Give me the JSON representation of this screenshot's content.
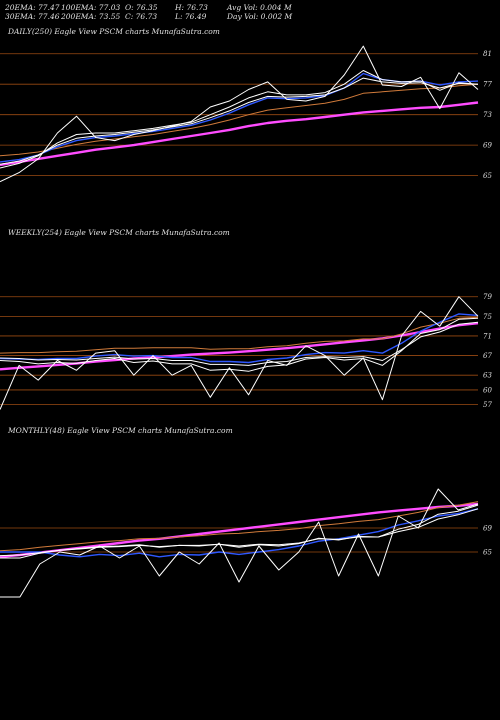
{
  "stats": {
    "ema20": "20EMA: 77.47",
    "ema100": "100EMA: 77.03",
    "open": "O: 76.35",
    "high": "H: 76.73",
    "avg_vol": "Avg Vol: 0.004  M",
    "ema30": "30EMA: 77.46",
    "ema200": "200EMA: 73.55",
    "close": "C: 76.73",
    "low": "L: 76.49",
    "day_vol": "Day Vol: 0.002  M"
  },
  "chart_data": [
    {
      "type": "line",
      "title": "DAILY(250) Eagle  View  PSCM charts MunafaSutra.com",
      "y_ticks": [
        "81",
        "77",
        "73",
        "69",
        "65"
      ],
      "y_tick_values": [
        81,
        77,
        73,
        69,
        65
      ],
      "ylim": [
        61.8,
        82.8
      ],
      "x": [
        0,
        10,
        20,
        30,
        40,
        50,
        60,
        70,
        80,
        90,
        100,
        110,
        120,
        130,
        140,
        150,
        160,
        170,
        180,
        190,
        200,
        210,
        220,
        230,
        240,
        250
      ],
      "series": [
        {
          "color": "#ffffff",
          "values": [
            64.2,
            65.4,
            67.2,
            70.6,
            72.8,
            70.0,
            69.6,
            70.4,
            70.9,
            71.5,
            72.1,
            74.0,
            74.8,
            76.3,
            77.3,
            75.0,
            74.8,
            75.4,
            78.2,
            82.0,
            76.9,
            76.7,
            77.9,
            73.8,
            78.5,
            76.3
          ]
        },
        {
          "color": "#ffffff",
          "values": [
            66.0,
            66.6,
            67.6,
            69.3,
            70.4,
            70.6,
            70.6,
            70.9,
            71.2,
            71.6,
            72.0,
            73.0,
            74.0,
            75.2,
            76.0,
            75.6,
            75.6,
            75.9,
            77.0,
            78.8,
            77.6,
            77.3,
            77.4,
            76.2,
            77.2,
            77.0
          ]
        },
        {
          "color": "#ffffff",
          "values": [
            66.5,
            66.9,
            67.7,
            69.0,
            69.9,
            70.2,
            70.4,
            70.7,
            71.0,
            71.4,
            71.8,
            72.6,
            73.5,
            74.6,
            75.4,
            75.3,
            75.4,
            75.6,
            76.5,
            77.8,
            77.3,
            77.1,
            77.2,
            76.5,
            77.1,
            77.0
          ]
        },
        {
          "color": "#2f58ff",
          "values": [
            66.8,
            67.1,
            67.7,
            68.8,
            69.6,
            70.0,
            70.2,
            70.5,
            70.8,
            71.2,
            71.6,
            72.3,
            73.2,
            74.3,
            75.2,
            75.1,
            75.2,
            75.5,
            76.5,
            78.4,
            77.6,
            77.3,
            77.4,
            76.9,
            77.3,
            77.4
          ]
        },
        {
          "color": "#d07a3a",
          "values": [
            67.6,
            67.8,
            68.1,
            68.6,
            69.1,
            69.5,
            69.8,
            70.1,
            70.4,
            70.8,
            71.2,
            71.7,
            72.3,
            73.0,
            73.6,
            73.9,
            74.2,
            74.5,
            75.0,
            75.8,
            76.0,
            76.2,
            76.4,
            76.5,
            76.8,
            77.0
          ]
        },
        {
          "color": "#ff4cff",
          "values": [
            66.4,
            66.8,
            67.2,
            67.6,
            68.0,
            68.4,
            68.7,
            69.0,
            69.4,
            69.8,
            70.2,
            70.6,
            71.0,
            71.5,
            71.9,
            72.2,
            72.4,
            72.7,
            73.0,
            73.3,
            73.5,
            73.7,
            73.9,
            74.0,
            74.3,
            74.6
          ]
        }
      ]
    },
    {
      "type": "line",
      "title": "WEEKLY(254) Eagle  View  PSCM charts MunafaSutra.com",
      "y_ticks": [
        "79",
        "75",
        "71",
        "67",
        "63",
        "60",
        "57"
      ],
      "y_tick_values": [
        79,
        75,
        71,
        67,
        63,
        60,
        57
      ],
      "ylim": [
        55.5,
        82.0
      ],
      "x": [
        0,
        10,
        20,
        30,
        40,
        50,
        60,
        70,
        80,
        90,
        100,
        110,
        120,
        130,
        140,
        150,
        160,
        170,
        180,
        190,
        200,
        210,
        220,
        230,
        240,
        250
      ],
      "series": [
        {
          "color": "#ffffff",
          "values": [
            56.0,
            65.0,
            62.0,
            66.0,
            64.0,
            67.5,
            68.0,
            63.0,
            67.0,
            63.0,
            65.0,
            58.5,
            64.5,
            59.0,
            66.0,
            65.0,
            69.0,
            67.0,
            63.0,
            66.5,
            58.0,
            71.0,
            76.0,
            73.0,
            79.0,
            75.0
          ]
        },
        {
          "color": "#ffffff",
          "values": [
            66.0,
            65.8,
            65.3,
            65.6,
            65.4,
            66.0,
            66.4,
            65.6,
            65.9,
            65.3,
            65.3,
            64.0,
            64.2,
            63.8,
            64.8,
            65.1,
            66.3,
            66.6,
            66.1,
            66.4,
            65.0,
            68.0,
            71.5,
            72.3,
            74.4,
            74.6
          ]
        },
        {
          "color": "#ffffff",
          "values": [
            66.5,
            66.4,
            66.1,
            66.2,
            66.1,
            66.4,
            66.7,
            66.3,
            66.4,
            66.0,
            66.0,
            65.2,
            65.2,
            65.0,
            65.6,
            65.8,
            66.6,
            66.8,
            66.6,
            66.8,
            66.0,
            68.2,
            70.8,
            71.8,
            73.4,
            73.8
          ]
        },
        {
          "color": "#2f58ff",
          "values": [
            66.4,
            66.3,
            66.2,
            66.4,
            66.4,
            66.9,
            67.2,
            66.9,
            67.0,
            66.6,
            66.6,
            65.8,
            65.8,
            65.6,
            66.2,
            66.5,
            67.2,
            67.6,
            67.5,
            68.0,
            67.5,
            69.5,
            72.0,
            73.8,
            75.5,
            75.2
          ]
        },
        {
          "color": "#d07a3a",
          "values": [
            67.5,
            67.6,
            67.6,
            67.8,
            67.9,
            68.2,
            68.5,
            68.5,
            68.6,
            68.6,
            68.6,
            68.3,
            68.4,
            68.4,
            68.8,
            69.0,
            69.5,
            69.9,
            70.0,
            70.4,
            70.4,
            71.4,
            72.8,
            73.6,
            74.6,
            74.8
          ]
        },
        {
          "color": "#ff4cff",
          "values": [
            64.2,
            64.5,
            64.8,
            65.1,
            65.4,
            65.8,
            66.1,
            66.4,
            66.6,
            66.9,
            67.2,
            67.4,
            67.6,
            67.9,
            68.2,
            68.5,
            68.9,
            69.3,
            69.7,
            70.1,
            70.5,
            71.1,
            71.8,
            72.5,
            73.2,
            73.6
          ]
        }
      ]
    },
    {
      "type": "line",
      "title": "MONTHLY(48) Eagle  View  PSCM charts MunafaSutra.com",
      "y_ticks": [
        "69",
        "65"
      ],
      "y_tick_values": [
        69,
        65
      ],
      "ylim": [
        52.0,
        77.0
      ],
      "x": [
        0,
        2,
        4,
        6,
        8,
        10,
        12,
        14,
        16,
        18,
        20,
        22,
        24,
        26,
        28,
        30,
        32,
        34,
        36,
        38,
        40,
        42,
        44,
        46,
        48
      ],
      "series": [
        {
          "color": "#ffffff",
          "values": [
            57.5,
            57.5,
            63.0,
            65.0,
            64.5,
            66.0,
            64.0,
            66.0,
            61.0,
            65.0,
            63.0,
            66.5,
            60.0,
            66.0,
            62.0,
            65.0,
            70.0,
            61.0,
            68.0,
            61.0,
            71.0,
            69.0,
            75.5,
            72.0,
            73.0
          ]
        },
        {
          "color": "#ffffff",
          "values": [
            64.0,
            64.0,
            64.8,
            65.3,
            65.6,
            65.9,
            66.0,
            66.2,
            65.8,
            66.1,
            66.0,
            66.3,
            65.8,
            66.2,
            66.0,
            66.4,
            67.3,
            67.0,
            67.6,
            67.5,
            68.8,
            69.6,
            71.3,
            71.8,
            72.8
          ]
        },
        {
          "color": "#ffffff",
          "values": [
            64.4,
            64.5,
            64.9,
            65.3,
            65.5,
            65.8,
            65.9,
            66.1,
            65.9,
            66.1,
            66.1,
            66.3,
            66.0,
            66.3,
            66.2,
            66.5,
            67.2,
            67.1,
            67.5,
            67.5,
            68.4,
            69.1,
            70.5,
            71.2,
            72.2
          ]
        },
        {
          "color": "#2f58ff",
          "values": [
            65.0,
            65.0,
            65.0,
            64.5,
            64.2,
            64.6,
            64.4,
            64.8,
            64.2,
            64.6,
            64.5,
            65.0,
            64.6,
            65.0,
            65.4,
            66.0,
            66.8,
            67.2,
            67.8,
            68.4,
            69.5,
            70.2,
            71.0,
            71.4,
            72.2
          ]
        },
        {
          "color": "#d07a3a",
          "values": [
            65.2,
            65.4,
            65.8,
            66.1,
            66.4,
            66.7,
            66.9,
            67.2,
            67.3,
            67.5,
            67.7,
            68.0,
            68.1,
            68.4,
            68.6,
            68.9,
            69.4,
            69.7,
            70.1,
            70.4,
            71.0,
            71.6,
            72.4,
            72.8,
            73.4
          ]
        },
        {
          "color": "#ff4cff",
          "values": [
            64.2,
            64.5,
            64.9,
            65.3,
            65.7,
            66.1,
            66.5,
            66.9,
            67.2,
            67.6,
            68.0,
            68.4,
            68.8,
            69.2,
            69.6,
            70.0,
            70.4,
            70.8,
            71.2,
            71.6,
            71.9,
            72.2,
            72.5,
            72.7,
            73.0
          ]
        }
      ]
    }
  ]
}
